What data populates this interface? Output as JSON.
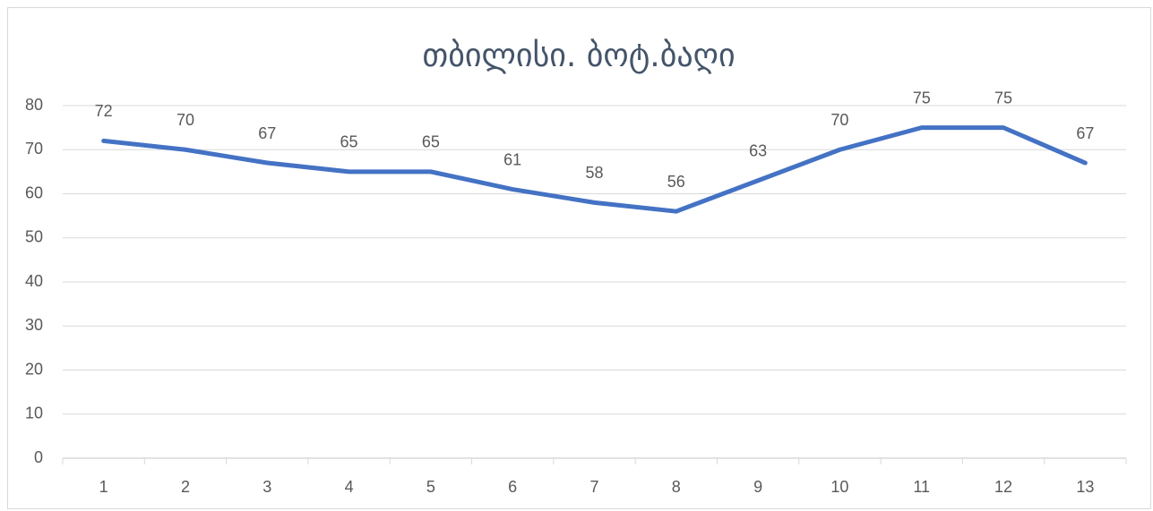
{
  "chart_data": {
    "type": "line",
    "title": "თბილისი. ბოტ.ბაღი",
    "categories": [
      "1",
      "2",
      "3",
      "4",
      "5",
      "6",
      "7",
      "8",
      "9",
      "10",
      "11",
      "12",
      "13"
    ],
    "series": [
      {
        "name": "ბოტ.ბაღი",
        "color": "#4472c4",
        "values": [
          72,
          70,
          67,
          65,
          65,
          61,
          58,
          56,
          63,
          70,
          75,
          75,
          67
        ]
      }
    ],
    "ylim": [
      0,
      80
    ],
    "yticks": [
      0,
      10,
      20,
      30,
      40,
      50,
      60,
      70,
      80
    ],
    "grid": true,
    "data_labels": true,
    "legend": false
  }
}
